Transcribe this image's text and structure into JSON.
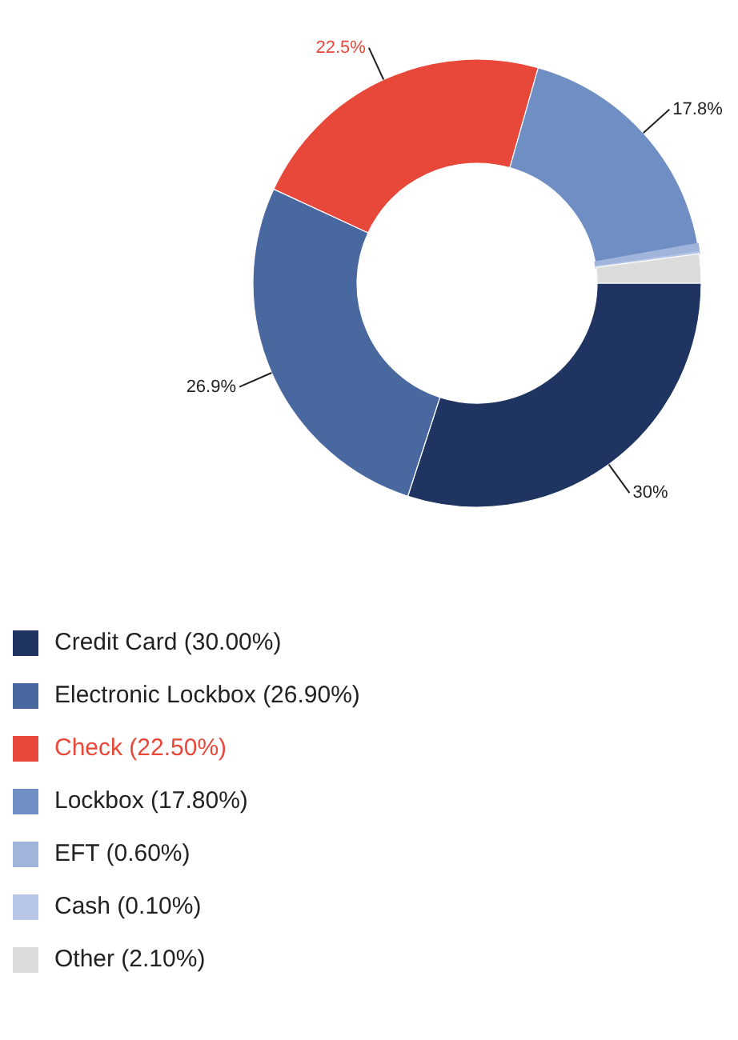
{
  "chart_data": {
    "type": "donut",
    "categories": [
      "Credit Card (30.00%)",
      "Electronic Lockbox (26.90%)",
      "Check (22.50%)",
      "Lockbox (17.80%)",
      "EFT (0.60%)",
      "Cash (0.10%)",
      "Other (2.10%)"
    ],
    "values": [
      30,
      26.9,
      22.5,
      17.8,
      0.6,
      0.1,
      2.1
    ],
    "colors": [
      "#1f3461",
      "#4a68a0",
      "#e8483a",
      "#6f8fc4",
      "#a0b4dc",
      "#b8c6e8",
      "#dcdcdc"
    ],
    "value_labels": [
      "30%",
      "26.9%",
      "22.5%",
      "17.8%",
      null,
      null,
      null
    ],
    "legend": "bottom"
  }
}
